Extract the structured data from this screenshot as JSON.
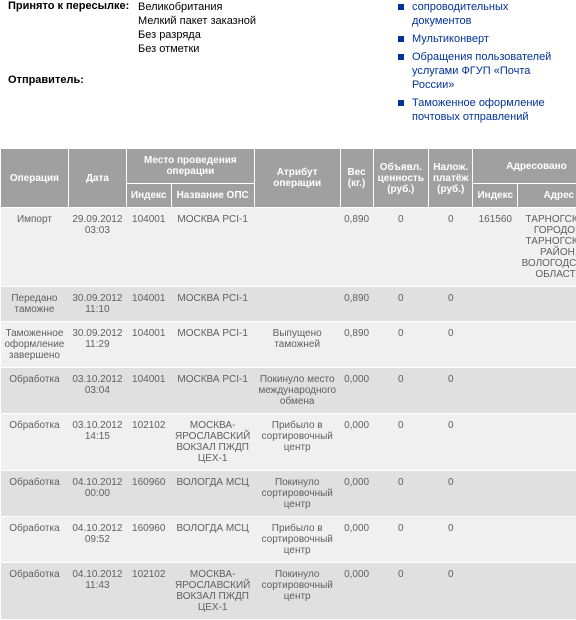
{
  "info": {
    "accepted_label": "Принято к пересылке:",
    "accepted_values": [
      "Великобритания",
      "Мелкий пакет заказной",
      "Без разряда",
      "Без отметки"
    ],
    "sender_label": "Отправитель:"
  },
  "links": [
    "сопроводительных документов",
    "Мультиконверт",
    "Обращения пользователей услугами ФГУП «Почта России»",
    "Таможенное оформление почтовых отправлений"
  ],
  "table": {
    "headers": {
      "operation": "Операция",
      "date": "Дата",
      "location": "Место проведения операции",
      "index": "Индекс",
      "ops_name": "Название ОПС",
      "attr": "Атрибут операции",
      "weight": "Вес (кг.)",
      "declared": "Объявл. ценность (руб.)",
      "cod": "Налож. платёж (руб.)",
      "addressed": "Адресовано",
      "adr_index": "Индекс",
      "adr": "Адрес"
    },
    "rows": [
      {
        "op": "Импорт",
        "date": "29.09.2012 03:03",
        "idx": "104001",
        "ops": "МОСКВА PCI-1",
        "attr": "",
        "w": "0,890",
        "dv": "0",
        "cod": "0",
        "aidx": "161560",
        "adr": "ТАРНОГСКИЙ ГОРОДОК, ТАРНОГСКИЙ РАЙОН, ВОЛОГОДСКАЯ ОБЛАСТЬ"
      },
      {
        "op": "Передано таможне",
        "date": "30.09.2012 11:10",
        "idx": "104001",
        "ops": "МОСКВА PCI-1",
        "attr": "",
        "w": "0,890",
        "dv": "0",
        "cod": "0",
        "aidx": "",
        "adr": ""
      },
      {
        "op": "Таможенное оформление завершено",
        "date": "30.09.2012 11:29",
        "idx": "104001",
        "ops": "МОСКВА PCI-1",
        "attr": "Выпущено таможней",
        "w": "0,890",
        "dv": "0",
        "cod": "0",
        "aidx": "",
        "adr": ""
      },
      {
        "op": "Обработка",
        "date": "03.10.2012 03:04",
        "idx": "104001",
        "ops": "МОСКВА PCI-1",
        "attr": "Покинуло место международного обмена",
        "w": "0,000",
        "dv": "0",
        "cod": "0",
        "aidx": "",
        "adr": ""
      },
      {
        "op": "Обработка",
        "date": "03.10.2012 14:15",
        "idx": "102102",
        "ops": "МОСКВА-ЯРОСЛАВСКИЙ ВОКЗАЛ ПЖДП ЦЕХ-1",
        "attr": "Прибыло в сортировочный центр",
        "w": "0,000",
        "dv": "0",
        "cod": "0",
        "aidx": "",
        "adr": ""
      },
      {
        "op": "Обработка",
        "date": "04.10.2012 00:00",
        "idx": "160960",
        "ops": "ВОЛОГДА МСЦ",
        "attr": "Покинуло сортировочный центр",
        "w": "0,000",
        "dv": "0",
        "cod": "0",
        "aidx": "",
        "adr": ""
      },
      {
        "op": "Обработка",
        "date": "04.10.2012 09:52",
        "idx": "160960",
        "ops": "ВОЛОГДА МСЦ",
        "attr": "Прибыло в сортировочный центр",
        "w": "0,000",
        "dv": "0",
        "cod": "0",
        "aidx": "",
        "adr": ""
      },
      {
        "op": "Обработка",
        "date": "04.10.2012 11:43",
        "idx": "102102",
        "ops": "МОСКВА-ЯРОСЛАВСКИЙ ВОКЗАЛ ПЖДП ЦЕХ-1",
        "attr": "Покинуло сортировочный центр",
        "w": "0,000",
        "dv": "0",
        "cod": "0",
        "aidx": "",
        "adr": ""
      }
    ]
  }
}
